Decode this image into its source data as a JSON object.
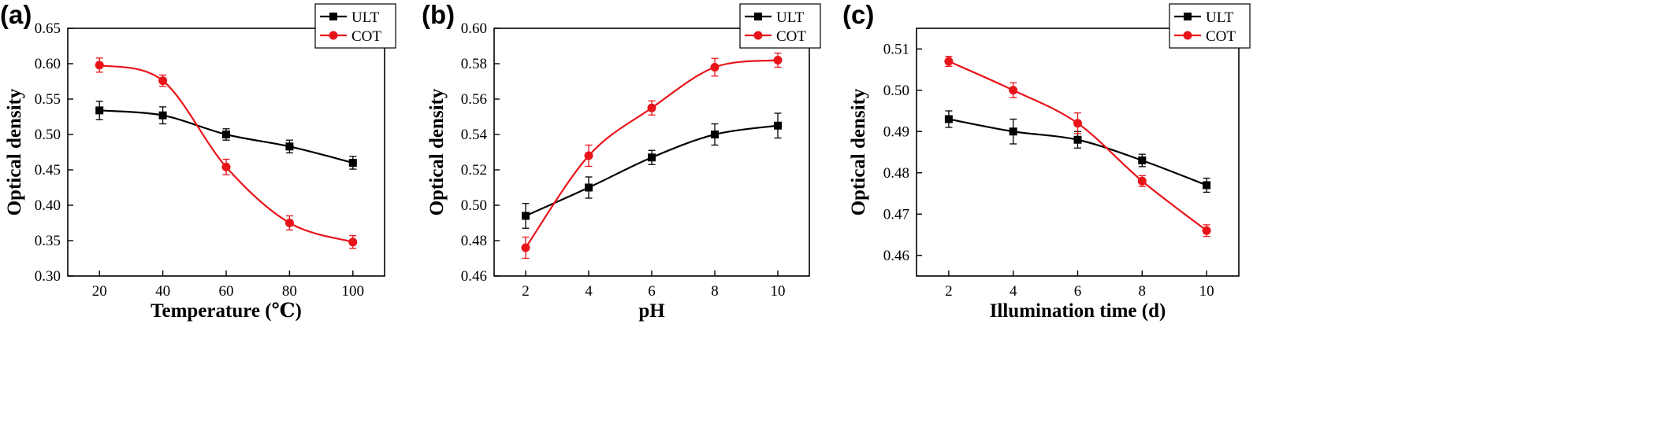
{
  "chart_data": [
    {
      "type": "line",
      "panel_label": "(a)",
      "xlabel": "Temperature (℃)",
      "ylabel": "Optical density",
      "x": [
        20,
        40,
        60,
        80,
        100
      ],
      "x_ticks": [
        "20",
        "40",
        "60",
        "80",
        "100"
      ],
      "xlim": [
        10,
        110
      ],
      "ylim": [
        0.3,
        0.65
      ],
      "y_ticks": [
        "0.30",
        "0.35",
        "0.40",
        "0.45",
        "0.50",
        "0.55",
        "0.60",
        "0.65"
      ],
      "legend_position": "top-right",
      "grid": false,
      "series": [
        {
          "name": "ULT",
          "color": "#000000",
          "marker": "square",
          "values": [
            0.534,
            0.527,
            0.5,
            0.483,
            0.46
          ],
          "errors": [
            0.013,
            0.012,
            0.008,
            0.009,
            0.009
          ]
        },
        {
          "name": "COT",
          "color": "#e8141a",
          "marker": "circle",
          "values": [
            0.598,
            0.576,
            0.454,
            0.375,
            0.348
          ],
          "errors": [
            0.01,
            0.008,
            0.011,
            0.01,
            0.009
          ]
        }
      ]
    },
    {
      "type": "line",
      "panel_label": "(b)",
      "xlabel": "pH",
      "ylabel": "Optical density",
      "x": [
        2,
        4,
        6,
        8,
        10
      ],
      "x_ticks": [
        "2",
        "4",
        "6",
        "8",
        "10"
      ],
      "xlim": [
        1,
        11
      ],
      "ylim": [
        0.46,
        0.6
      ],
      "y_ticks": [
        "0.46",
        "0.48",
        "0.50",
        "0.52",
        "0.54",
        "0.56",
        "0.58",
        "0.60"
      ],
      "legend_position": "top-right",
      "grid": false,
      "series": [
        {
          "name": "ULT",
          "color": "#000000",
          "marker": "square",
          "values": [
            0.494,
            0.51,
            0.527,
            0.54,
            0.545
          ],
          "errors": [
            0.007,
            0.006,
            0.004,
            0.006,
            0.007
          ]
        },
        {
          "name": "COT",
          "color": "#e8141a",
          "marker": "circle",
          "values": [
            0.476,
            0.528,
            0.555,
            0.578,
            0.582
          ],
          "errors": [
            0.006,
            0.006,
            0.004,
            0.005,
            0.004
          ]
        }
      ]
    },
    {
      "type": "line",
      "panel_label": "(c)",
      "xlabel": "Illumination time (d)",
      "ylabel": "Optical density",
      "x": [
        2,
        4,
        6,
        8,
        10
      ],
      "x_ticks": [
        "2",
        "4",
        "6",
        "8",
        "10"
      ],
      "xlim": [
        1,
        11
      ],
      "ylim": [
        0.455,
        0.515
      ],
      "y_ticks": [
        "0.46",
        "0.47",
        "0.48",
        "0.49",
        "0.50",
        "0.51"
      ],
      "legend_position": "top-right",
      "grid": false,
      "series": [
        {
          "name": "ULT",
          "color": "#000000",
          "marker": "square",
          "values": [
            0.493,
            0.49,
            0.488,
            0.483,
            0.477
          ],
          "errors": [
            0.002,
            0.003,
            0.002,
            0.0015,
            0.0017
          ]
        },
        {
          "name": "COT",
          "color": "#e8141a",
          "marker": "circle",
          "values": [
            0.507,
            0.5,
            0.492,
            0.478,
            0.466
          ],
          "errors": [
            0.0012,
            0.0018,
            0.0025,
            0.0013,
            0.0014
          ]
        }
      ]
    }
  ]
}
